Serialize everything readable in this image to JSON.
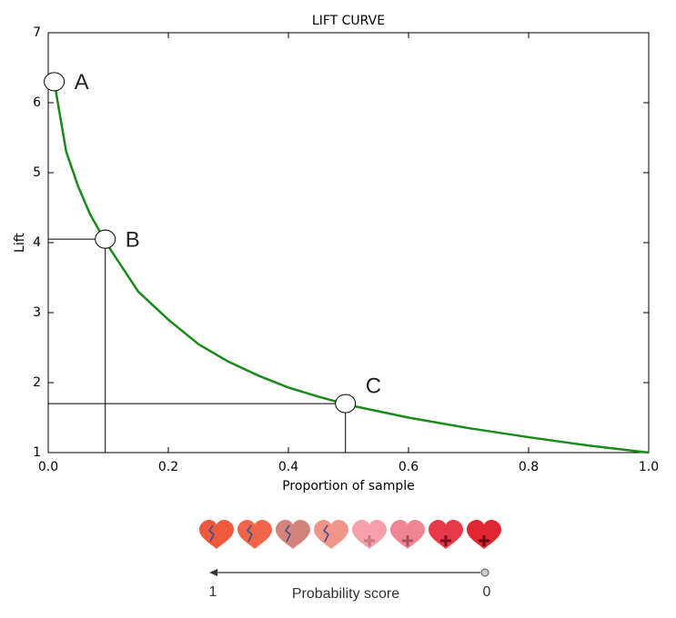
{
  "chart_data": {
    "type": "line",
    "title": "LIFT CURVE",
    "x_label": "Proportion of sample",
    "y_label": "Lift",
    "x": [
      0.01,
      0.02,
      0.03,
      0.05,
      0.07,
      0.09,
      0.1,
      0.15,
      0.2,
      0.25,
      0.3,
      0.35,
      0.4,
      0.45,
      0.5,
      0.6,
      0.7,
      0.8,
      0.9,
      1.0
    ],
    "values": [
      6.3,
      5.8,
      5.3,
      4.8,
      4.4,
      4.1,
      3.95,
      3.3,
      2.9,
      2.55,
      2.3,
      2.1,
      1.93,
      1.8,
      1.68,
      1.5,
      1.35,
      1.22,
      1.1,
      1.0
    ],
    "color": "#1a8a1a",
    "xlim": [
      0,
      1
    ],
    "ylim": [
      1,
      7
    ],
    "xticks": [
      {
        "value": 0,
        "label": "0.0"
      },
      0.2,
      0.4,
      0.6,
      0.8,
      {
        "value": 1,
        "label": "1.0"
      }
    ],
    "yticks": [
      1,
      2,
      3,
      4,
      5,
      6,
      7
    ],
    "annotations": [
      {
        "label": "A",
        "x": 0.01,
        "y": 6.3
      },
      {
        "label": "B",
        "x": 0.095,
        "y": 4.05
      },
      {
        "label": "C",
        "x": 0.495,
        "y": 1.7
      }
    ]
  },
  "probability_scale": {
    "left": "1",
    "label": "Probability score",
    "right": "0"
  }
}
